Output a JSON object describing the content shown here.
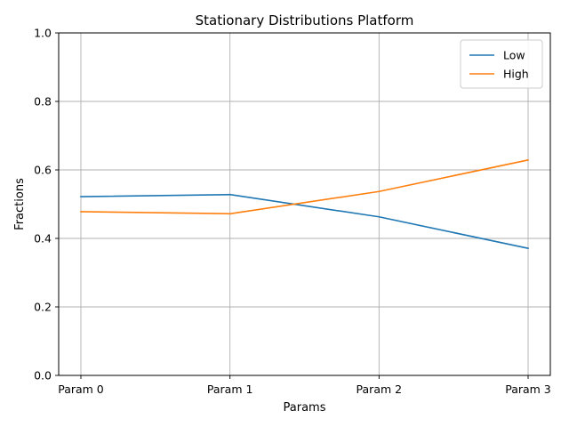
{
  "chart_data": {
    "type": "line",
    "title": "Stationary Distributions Platform",
    "xlabel": "Params",
    "ylabel": "Fractions",
    "categories": [
      "Param 0",
      "Param 1",
      "Param 2",
      "Param 3"
    ],
    "ylim": [
      0,
      1
    ],
    "yticks": [
      "0.0",
      "0.2",
      "0.4",
      "0.6",
      "0.8",
      "1.0"
    ],
    "grid": true,
    "legend_position": "top-right",
    "series": [
      {
        "name": "Low",
        "color": "#1f77b4",
        "values": [
          0.522,
          0.528,
          0.463,
          0.371
        ]
      },
      {
        "name": "High",
        "color": "#ff7f0e",
        "values": [
          0.478,
          0.472,
          0.537,
          0.629
        ]
      }
    ]
  }
}
